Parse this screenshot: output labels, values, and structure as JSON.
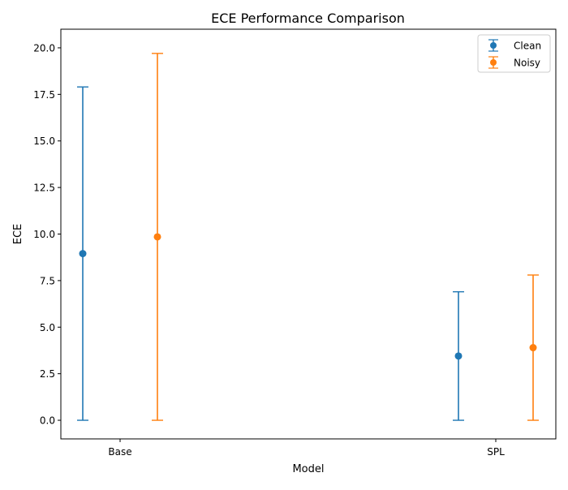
{
  "chart_data": {
    "type": "scatter",
    "title": "ECE Performance Comparison",
    "xlabel": "Model",
    "ylabel": "ECE",
    "categories": [
      "Base",
      "SPL"
    ],
    "ylim": [
      -1.0,
      21.0
    ],
    "yticks": [
      0.0,
      2.5,
      5.0,
      7.5,
      10.0,
      12.5,
      15.0,
      17.5,
      20.0
    ],
    "ytick_labels": [
      "0.0",
      "2.5",
      "5.0",
      "7.5",
      "10.0",
      "12.5",
      "15.0",
      "17.5",
      "20.0"
    ],
    "grid": false,
    "legend_position": "top-right",
    "series": [
      {
        "name": "Clean",
        "color": "#1f77b4",
        "values": [
          8.95,
          3.45
        ],
        "err_low": [
          0.0,
          0.0
        ],
        "err_high": [
          17.9,
          6.9
        ]
      },
      {
        "name": "Noisy",
        "color": "#ff7f0e",
        "values": [
          9.85,
          3.9
        ],
        "err_low": [
          0.0,
          0.0
        ],
        "err_high": [
          19.7,
          7.8
        ]
      }
    ]
  }
}
